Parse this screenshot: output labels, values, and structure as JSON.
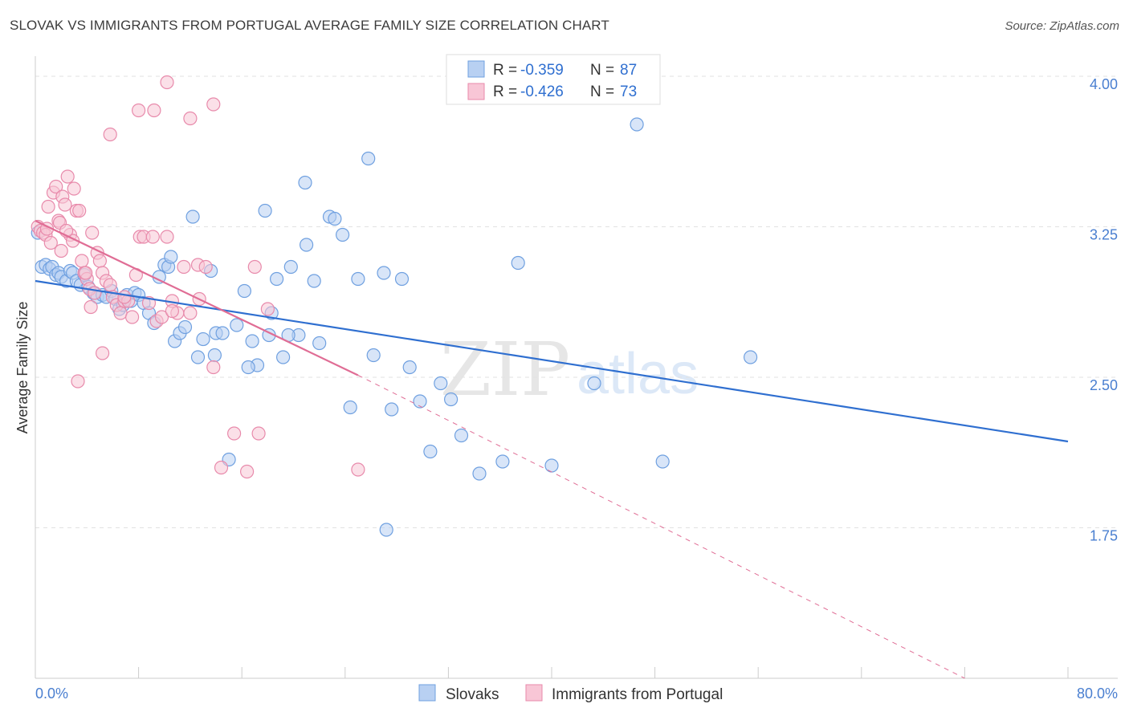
{
  "title": "SLOVAK VS IMMIGRANTS FROM PORTUGAL AVERAGE FAMILY SIZE CORRELATION CHART",
  "source": "Source: ZipAtlas.com",
  "watermark": {
    "zip": "ZIP",
    "atlas": "atlas"
  },
  "legend": {
    "rows": [
      {
        "r_label": "R =",
        "r_value": "-0.359",
        "n_label": "N =",
        "n_value": "87",
        "color": "#6fa0e0",
        "fill": "#b8d0f2"
      },
      {
        "r_label": "R =",
        "r_value": "-0.426",
        "n_label": "N =",
        "n_value": "73",
        "color": "#e88aab",
        "fill": "#f8c6d6"
      }
    ]
  },
  "bottom_legend": [
    {
      "label": "Slovaks",
      "color": "#6fa0e0",
      "fill": "#b8d0f2"
    },
    {
      "label": "Immigrants from Portugal",
      "color": "#e88aab",
      "fill": "#f8c6d6"
    }
  ],
  "chart_data": {
    "type": "scatter",
    "ylabel": "Average Family Size",
    "xlabel": "",
    "xlim": [
      0,
      80
    ],
    "ylim": [
      1.0,
      4.1
    ],
    "x_tick_labels": [
      {
        "value": 0,
        "label": "0.0%"
      },
      {
        "value": 80,
        "label": "80.0%"
      }
    ],
    "y_ticks": [
      {
        "value": 4.0,
        "label": "4.00"
      },
      {
        "value": 3.25,
        "label": "3.25"
      },
      {
        "value": 2.5,
        "label": "2.50"
      },
      {
        "value": 1.75,
        "label": "1.75"
      }
    ],
    "grid": "horizontal dashed",
    "series": [
      {
        "name": "Slovaks",
        "color": "#6fa0e0",
        "fill": "#b8d0f2",
        "trend": {
          "x1": 0,
          "y1": 2.98,
          "x2": 80,
          "y2": 2.18,
          "color": "#2f6fd0"
        },
        "points": [
          [
            0.2,
            3.22
          ],
          [
            0.5,
            3.05
          ],
          [
            0.8,
            3.06
          ],
          [
            1.1,
            3.04
          ],
          [
            1.3,
            3.05
          ],
          [
            1.6,
            3.01
          ],
          [
            1.8,
            3.02
          ],
          [
            2.0,
            3.0
          ],
          [
            2.4,
            2.98
          ],
          [
            2.7,
            3.03
          ],
          [
            2.9,
            3.02
          ],
          [
            3.2,
            2.98
          ],
          [
            3.5,
            2.96
          ],
          [
            3.8,
            3.01
          ],
          [
            4.1,
            2.95
          ],
          [
            4.5,
            2.92
          ],
          [
            4.8,
            2.9
          ],
          [
            5.2,
            2.91
          ],
          [
            5.5,
            2.9
          ],
          [
            5.9,
            2.93
          ],
          [
            6.2,
            2.89
          ],
          [
            6.5,
            2.84
          ],
          [
            6.8,
            2.86
          ],
          [
            7.1,
            2.91
          ],
          [
            7.4,
            2.88
          ],
          [
            7.7,
            2.92
          ],
          [
            8.0,
            2.91
          ],
          [
            8.4,
            2.87
          ],
          [
            8.8,
            2.82
          ],
          [
            9.2,
            2.77
          ],
          [
            9.6,
            3.0
          ],
          [
            10.0,
            3.06
          ],
          [
            10.3,
            3.05
          ],
          [
            10.8,
            2.68
          ],
          [
            11.2,
            2.72
          ],
          [
            11.6,
            2.75
          ],
          [
            12.2,
            3.3
          ],
          [
            12.6,
            2.6
          ],
          [
            13.0,
            2.69
          ],
          [
            13.6,
            3.03
          ],
          [
            14.0,
            2.72
          ],
          [
            14.5,
            2.72
          ],
          [
            15.0,
            2.09
          ],
          [
            15.6,
            2.76
          ],
          [
            16.2,
            2.93
          ],
          [
            16.8,
            2.68
          ],
          [
            17.2,
            2.56
          ],
          [
            17.8,
            3.33
          ],
          [
            18.3,
            2.82
          ],
          [
            18.7,
            2.99
          ],
          [
            19.2,
            2.6
          ],
          [
            19.8,
            3.05
          ],
          [
            20.4,
            2.71
          ],
          [
            21.0,
            3.16
          ],
          [
            21.6,
            2.98
          ],
          [
            22.0,
            2.67
          ],
          [
            22.8,
            3.3
          ],
          [
            23.2,
            3.29
          ],
          [
            23.8,
            3.21
          ],
          [
            24.4,
            2.35
          ],
          [
            25.0,
            2.99
          ],
          [
            25.8,
            3.59
          ],
          [
            26.2,
            2.61
          ],
          [
            27.0,
            3.02
          ],
          [
            27.6,
            2.34
          ],
          [
            28.4,
            2.99
          ],
          [
            29.0,
            2.55
          ],
          [
            29.8,
            2.38
          ],
          [
            30.6,
            2.13
          ],
          [
            31.4,
            2.47
          ],
          [
            32.2,
            2.39
          ],
          [
            33.0,
            2.21
          ],
          [
            34.4,
            2.02
          ],
          [
            36.2,
            2.08
          ],
          [
            37.4,
            3.07
          ],
          [
            40.0,
            2.06
          ],
          [
            43.3,
            2.47
          ],
          [
            46.6,
            3.76
          ],
          [
            48.6,
            2.08
          ],
          [
            55.4,
            2.6
          ],
          [
            10.5,
            3.1
          ],
          [
            13.9,
            2.61
          ],
          [
            16.5,
            2.55
          ],
          [
            18.1,
            2.71
          ],
          [
            19.6,
            2.71
          ],
          [
            27.2,
            1.74
          ],
          [
            20.9,
            3.47
          ]
        ]
      },
      {
        "name": "Immigrants from Portugal",
        "color": "#e88aab",
        "fill": "#f8c6d6",
        "trend": {
          "x1": 0,
          "y1": 3.28,
          "x2": 25,
          "y2": 2.51,
          "color": "#e06d95",
          "dash_to": {
            "x": 72,
            "y": 1.0
          }
        },
        "points": [
          [
            0.2,
            3.25
          ],
          [
            0.4,
            3.23
          ],
          [
            0.6,
            3.22
          ],
          [
            0.8,
            3.21
          ],
          [
            1.0,
            3.35
          ],
          [
            1.2,
            3.17
          ],
          [
            1.4,
            3.42
          ],
          [
            1.6,
            3.45
          ],
          [
            1.8,
            3.28
          ],
          [
            2.0,
            3.13
          ],
          [
            2.1,
            3.4
          ],
          [
            2.3,
            3.36
          ],
          [
            2.5,
            3.5
          ],
          [
            2.7,
            3.21
          ],
          [
            2.9,
            3.18
          ],
          [
            3.0,
            3.44
          ],
          [
            3.2,
            3.33
          ],
          [
            3.4,
            3.33
          ],
          [
            3.6,
            3.08
          ],
          [
            3.8,
            3.02
          ],
          [
            4.0,
            2.99
          ],
          [
            4.2,
            2.94
          ],
          [
            4.4,
            3.22
          ],
          [
            4.6,
            2.92
          ],
          [
            4.8,
            3.12
          ],
          [
            5.0,
            3.08
          ],
          [
            5.2,
            3.02
          ],
          [
            5.5,
            2.98
          ],
          [
            5.8,
            2.96
          ],
          [
            6.0,
            2.9
          ],
          [
            6.3,
            2.86
          ],
          [
            6.6,
            2.82
          ],
          [
            6.9,
            2.88
          ],
          [
            7.2,
            2.88
          ],
          [
            7.5,
            2.8
          ],
          [
            7.8,
            3.01
          ],
          [
            8.1,
            3.2
          ],
          [
            8.4,
            3.2
          ],
          [
            8.8,
            2.87
          ],
          [
            9.1,
            3.2
          ],
          [
            9.4,
            2.78
          ],
          [
            9.8,
            2.8
          ],
          [
            10.2,
            3.2
          ],
          [
            10.6,
            2.88
          ],
          [
            11.0,
            2.82
          ],
          [
            11.5,
            3.05
          ],
          [
            12.0,
            2.82
          ],
          [
            12.6,
            3.06
          ],
          [
            13.2,
            3.05
          ],
          [
            13.8,
            2.55
          ],
          [
            14.4,
            2.05
          ],
          [
            16.4,
            2.03
          ],
          [
            17.0,
            3.05
          ],
          [
            18.0,
            2.84
          ],
          [
            3.3,
            2.48
          ],
          [
            5.2,
            2.62
          ],
          [
            8.0,
            3.83
          ],
          [
            9.2,
            3.83
          ],
          [
            5.8,
            3.71
          ],
          [
            10.2,
            3.97
          ],
          [
            12.0,
            3.79
          ],
          [
            13.8,
            3.86
          ],
          [
            25.0,
            2.04
          ],
          [
            1.9,
            3.27
          ],
          [
            4.3,
            2.85
          ],
          [
            6.9,
            2.9
          ],
          [
            10.6,
            2.83
          ],
          [
            3.9,
            3.02
          ],
          [
            2.4,
            3.23
          ],
          [
            0.9,
            3.24
          ],
          [
            12.7,
            2.89
          ],
          [
            15.4,
            2.22
          ],
          [
            17.3,
            2.22
          ]
        ]
      }
    ]
  }
}
